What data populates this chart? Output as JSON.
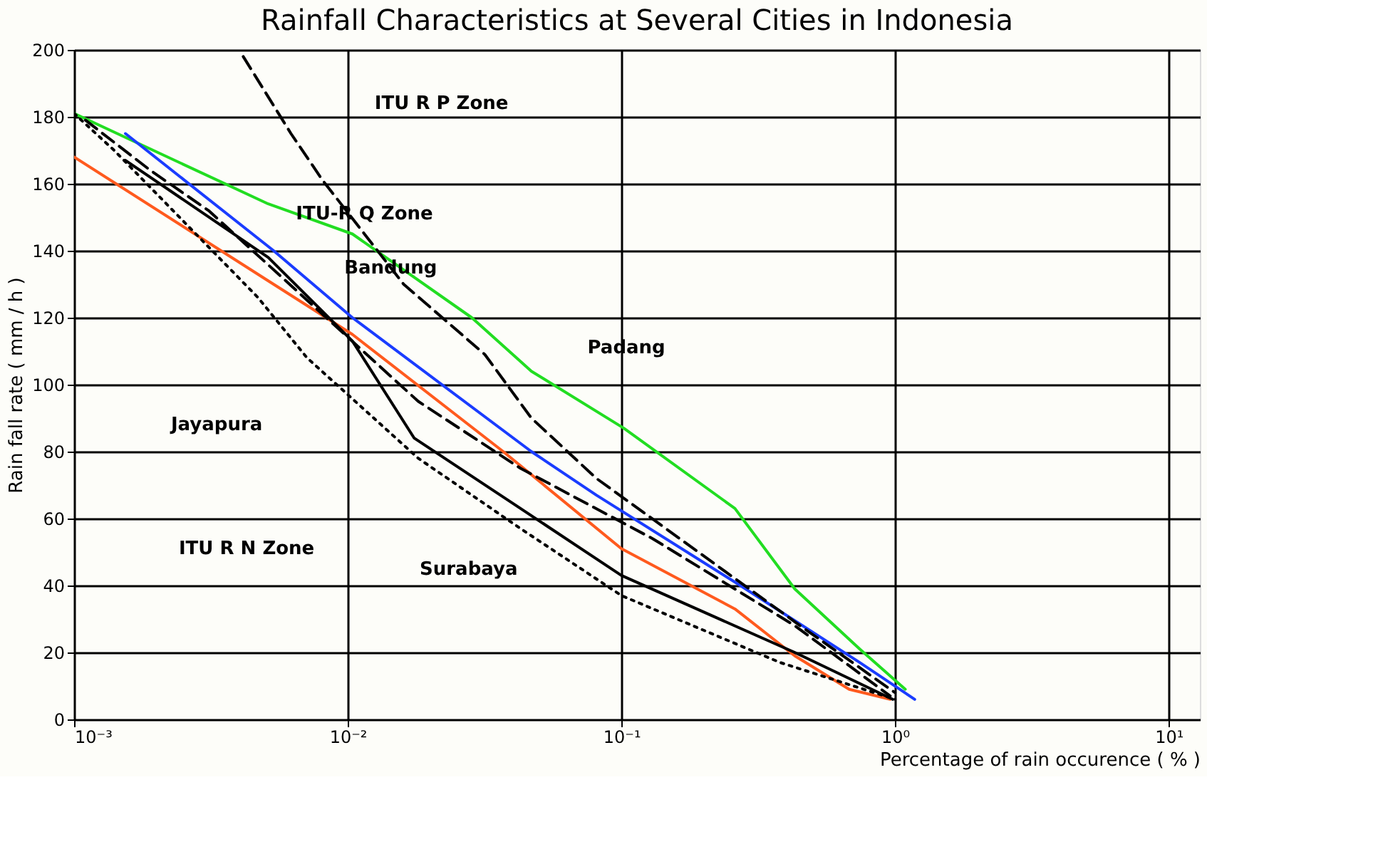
{
  "chart_data": {
    "type": "line",
    "title": "Rainfall Characteristics at Several Cities in Indonesia",
    "xlabel": "Percentage of rain occurence ( % )",
    "ylabel": "Rain fall rate  ( mm / h )",
    "log": "x",
    "grid": true,
    "legend": false,
    "marker": "none",
    "xlim": [
      0.001,
      13
    ],
    "ylim": [
      0,
      200
    ],
    "xticks": [
      {
        "value": 0.001,
        "label": "10⁻³"
      },
      {
        "value": 0.01,
        "label": "10⁻²"
      },
      {
        "value": 0.1,
        "label": "10⁻¹"
      },
      {
        "value": 1,
        "label": "10⁰"
      },
      {
        "value": 10,
        "label": "10¹"
      }
    ],
    "yticks": [
      0,
      20,
      40,
      60,
      80,
      100,
      120,
      140,
      160,
      180,
      200
    ],
    "series": [
      {
        "color": "#22dd22",
        "line_style": "solid",
        "x": [
          0.001,
          0.00512,
          0.0104,
          0.0284,
          0.0469,
          0.102,
          0.26,
          0.43,
          0.743,
          1.09
        ],
        "values": [
          181,
          154,
          145,
          120,
          104,
          87,
          63,
          39,
          21,
          9
        ]
      },
      {
        "color": "#1a3cff",
        "line_style": "solid",
        "x": [
          0.00154,
          0.00536,
          0.0104,
          0.0469,
          0.081,
          0.26,
          0.743,
          1.18
        ],
        "values": [
          175,
          140,
          120,
          80,
          67,
          41,
          17,
          6
        ]
      },
      {
        "color": "#ff5a1e",
        "line_style": "solid",
        "x": [
          0.001,
          0.00512,
          0.0104,
          0.037,
          0.1,
          0.26,
          0.43,
          0.68,
          0.96
        ],
        "values": [
          168,
          131,
          115,
          80,
          51,
          33,
          19,
          9,
          6
        ]
      },
      {
        "color": "#000000",
        "line_style": "solid",
        "x": [
          0.00154,
          0.00512,
          0.0104,
          0.0175,
          0.0428,
          0.1,
          0.43,
          0.98
        ],
        "values": [
          167,
          138,
          113,
          84,
          63,
          43,
          20,
          6
        ]
      },
      {
        "color": "#000000",
        "line_style": "dashed",
        "x": [
          0.00415,
          0.0062,
          0.0081,
          0.016,
          0.0317,
          0.0469,
          0.081,
          0.45,
          1.0
        ],
        "values": [
          198,
          175,
          161,
          130,
          109,
          90,
          72,
          28,
          8
        ]
      },
      {
        "color": "#000000",
        "line_style": "dashed",
        "x": [
          0.0011,
          0.0019,
          0.0031,
          0.0181,
          0.0428,
          0.13,
          0.43,
          0.96
        ],
        "values": [
          179,
          164,
          152,
          95,
          75,
          54,
          28,
          7
        ]
      },
      {
        "color": "#000000",
        "line_style": "dotted",
        "x": [
          0.001,
          0.0014,
          0.0047,
          0.0071,
          0.0181,
          0.0428,
          0.1,
          0.38,
          1.0
        ],
        "values": [
          181,
          170,
          126,
          108,
          78,
          57,
          37,
          17,
          6
        ]
      }
    ],
    "annotations": [
      "ITU R P Zone",
      "ITU-R Q Zone",
      "Bandung",
      "Padang",
      "Jayapura",
      "ITU R N Zone",
      "Surabaya"
    ]
  }
}
